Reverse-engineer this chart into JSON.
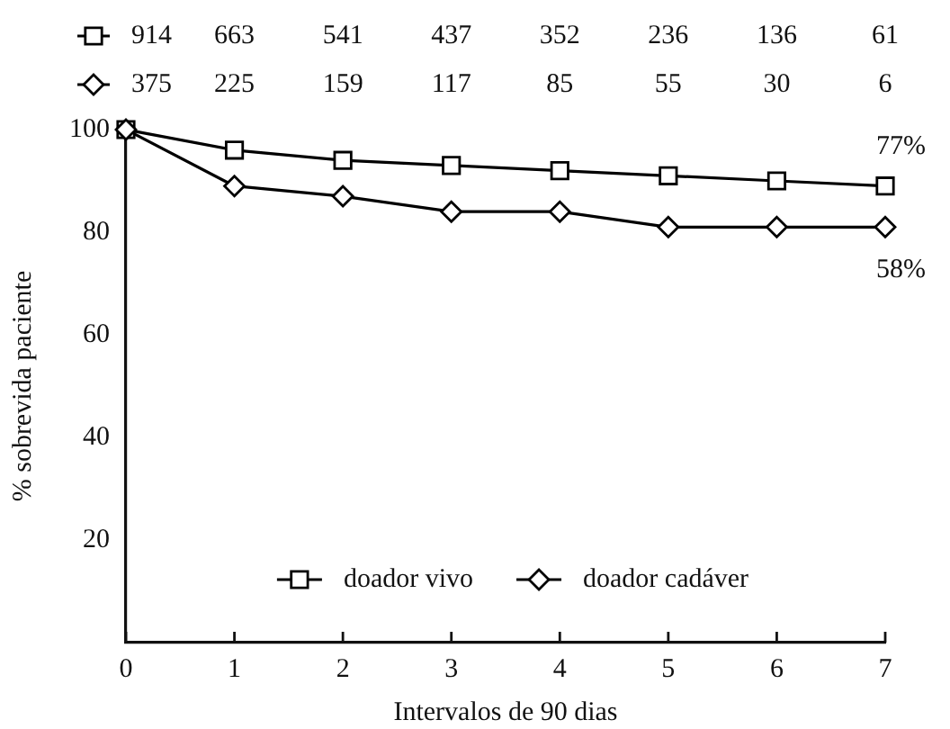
{
  "chart_data": {
    "type": "line",
    "xlabel": "Intervalos de 90 dias",
    "ylabel": "% sobrevida paciente",
    "x": [
      0,
      1,
      2,
      3,
      4,
      5,
      6,
      7
    ],
    "series": [
      {
        "name": "doador vivo",
        "color": "#000000",
        "marker": "square",
        "values": [
          100,
          96,
          94,
          93,
          92,
          91,
          90,
          89
        ]
      },
      {
        "name": "doador cadáver",
        "color": "#000000",
        "marker": "diamond",
        "values": [
          100,
          89,
          87,
          84,
          84,
          81,
          81,
          81
        ]
      }
    ],
    "xlim": [
      0,
      7
    ],
    "ylim": [
      0,
      100
    ],
    "xticks": [
      0,
      1,
      2,
      3,
      4,
      5,
      6,
      7
    ],
    "yticks": [
      20,
      40,
      60,
      80,
      100
    ],
    "legend": "bottom",
    "line_style": "solid",
    "annotations": [
      "914",
      "663",
      "541",
      "437",
      "352",
      "236",
      "136",
      "61",
      "375",
      "225",
      "159",
      "117",
      "85",
      "55",
      "30",
      "6",
      "77%",
      "58%"
    ]
  }
}
